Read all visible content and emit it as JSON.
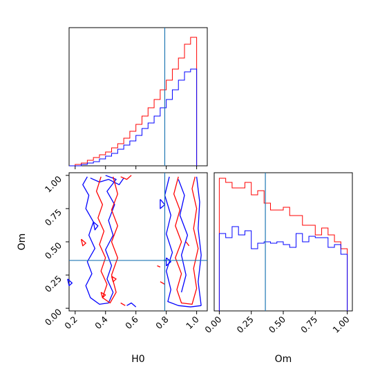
{
  "chart_data": {
    "type": "corner",
    "parameters": [
      "H0",
      "Om"
    ],
    "truth": {
      "H0": 0.79,
      "Om": 0.36
    },
    "truth_color": "#1f77b4",
    "series_colors": {
      "a": "#ff0000",
      "b": "#0000ff"
    },
    "panels": {
      "hist_h0": {
        "xlim": [
          0.16,
          1.07
        ],
        "bin_edges": [
          0.16,
          0.2,
          0.24,
          0.28,
          0.32,
          0.36,
          0.4,
          0.44,
          0.48,
          0.52,
          0.56,
          0.6,
          0.64,
          0.68,
          0.72,
          0.76,
          0.8,
          0.84,
          0.88,
          0.92,
          0.96,
          1.0
        ],
        "series_a": [
          0.0,
          0.01,
          0.02,
          0.04,
          0.06,
          0.08,
          0.1,
          0.13,
          0.16,
          0.2,
          0.25,
          0.3,
          0.36,
          0.42,
          0.48,
          0.55,
          0.62,
          0.7,
          0.78,
          0.88,
          0.93
        ],
        "series_b": [
          0.0,
          0.0,
          0.01,
          0.02,
          0.03,
          0.05,
          0.07,
          0.09,
          0.12,
          0.15,
          0.18,
          0.22,
          0.27,
          0.31,
          0.36,
          0.42,
          0.48,
          0.55,
          0.62,
          0.68,
          0.7
        ]
      },
      "hist_om": {
        "xlim": [
          -0.04,
          1.04
        ],
        "bin_edges": [
          0.0,
          0.05,
          0.1,
          0.15,
          0.2,
          0.25,
          0.3,
          0.35,
          0.4,
          0.45,
          0.5,
          0.55,
          0.6,
          0.65,
          0.7,
          0.75,
          0.8,
          0.85,
          0.9,
          0.95,
          1.0
        ],
        "series_a": [
          0.96,
          0.93,
          0.89,
          0.89,
          0.93,
          0.84,
          0.87,
          0.78,
          0.73,
          0.73,
          0.75,
          0.69,
          0.69,
          0.62,
          0.62,
          0.55,
          0.6,
          0.55,
          0.5,
          0.45
        ],
        "series_b": [
          0.56,
          0.53,
          0.61,
          0.55,
          0.58,
          0.45,
          0.49,
          0.5,
          0.49,
          0.5,
          0.48,
          0.46,
          0.56,
          0.5,
          0.54,
          0.53,
          0.53,
          0.46,
          0.48,
          0.41
        ]
      },
      "contour": {
        "xlim": [
          0.16,
          1.07
        ],
        "ylim": [
          -0.02,
          1.02
        ]
      }
    },
    "xlabels": {
      "bottom_left": "H0",
      "bottom_right": "Om"
    },
    "ylabels": {
      "left": "Om"
    },
    "ticks": {
      "h0": [
        "0.2",
        "0.4",
        "0.6",
        "0.8",
        "1.0"
      ],
      "om": [
        "0.00",
        "0.25",
        "0.50",
        "0.75",
        "1.00"
      ]
    }
  }
}
